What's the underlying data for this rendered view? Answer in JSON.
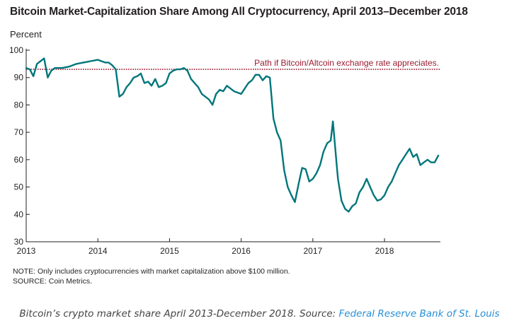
{
  "chart_data": {
    "type": "line",
    "title": "Bitcoin Market-Capitalization Share Among All Cryptocurrency, April 2013–December 2018",
    "ylabel": "Percent",
    "xlabel": "",
    "ylim": [
      30,
      100
    ],
    "yticks": [
      30,
      40,
      50,
      60,
      70,
      80,
      90,
      100
    ],
    "xlim": [
      2013.0,
      2018.78
    ],
    "xticks": [
      {
        "value": 2013,
        "label": "2013"
      },
      {
        "value": 2014,
        "label": "2014"
      },
      {
        "value": 2015,
        "label": "2015"
      },
      {
        "value": 2016,
        "label": "2016"
      },
      {
        "value": 2017,
        "label": "2017"
      },
      {
        "value": 2018,
        "label": "2018"
      }
    ],
    "grid": false,
    "series": [
      {
        "color": "#00767a",
        "x": [
          2013.0,
          2013.05,
          2013.1,
          2013.15,
          2013.2,
          2013.25,
          2013.3,
          2013.35,
          2013.4,
          2013.5,
          2013.6,
          2013.7,
          2013.8,
          2013.9,
          2014.0,
          2014.05,
          2014.1,
          2014.15,
          2014.2,
          2014.25,
          2014.3,
          2014.35,
          2014.4,
          2014.45,
          2014.5,
          2014.55,
          2014.6,
          2014.65,
          2014.7,
          2014.75,
          2014.8,
          2014.85,
          2014.9,
          2014.95,
          2015.0,
          2015.05,
          2015.1,
          2015.15,
          2015.2,
          2015.25,
          2015.3,
          2015.35,
          2015.4,
          2015.45,
          2015.5,
          2015.55,
          2015.6,
          2015.65,
          2015.7,
          2015.75,
          2015.8,
          2015.85,
          2015.9,
          2015.95,
          2016.0,
          2016.05,
          2016.1,
          2016.15,
          2016.2,
          2016.25,
          2016.3,
          2016.35,
          2016.4,
          2016.45,
          2016.5,
          2016.55,
          2016.6,
          2016.65,
          2016.7,
          2016.75,
          2016.8,
          2016.85,
          2016.9,
          2016.95,
          2017.0,
          2017.05,
          2017.1,
          2017.15,
          2017.2,
          2017.25,
          2017.28,
          2017.32,
          2017.35,
          2017.4,
          2017.45,
          2017.5,
          2017.55,
          2017.6,
          2017.65,
          2017.7,
          2017.75,
          2017.8,
          2017.85,
          2017.9,
          2017.95,
          2018.0,
          2018.05,
          2018.1,
          2018.15,
          2018.2,
          2018.25,
          2018.3,
          2018.35,
          2018.4,
          2018.45,
          2018.5,
          2018.55,
          2018.6,
          2018.65,
          2018.7,
          2018.75
        ],
        "y": [
          93.5,
          93.0,
          90.5,
          95.0,
          96.0,
          97.0,
          90.0,
          92.5,
          93.5,
          93.5,
          94.0,
          95.0,
          95.5,
          96.0,
          96.5,
          96.0,
          95.5,
          95.5,
          94.5,
          93.0,
          83.0,
          84.0,
          86.5,
          88.0,
          90.0,
          90.5,
          91.5,
          88.0,
          88.5,
          87.0,
          89.5,
          86.5,
          87.0,
          88.0,
          91.5,
          92.5,
          93.0,
          93.0,
          93.5,
          92.5,
          89.5,
          88.0,
          86.5,
          84.0,
          83.0,
          82.0,
          80.0,
          84.0,
          85.5,
          85.0,
          87.0,
          86.0,
          85.0,
          84.5,
          84.0,
          86.0,
          88.0,
          89.0,
          91.0,
          91.0,
          89.0,
          90.5,
          90.0,
          75.0,
          70.0,
          67.0,
          56.0,
          50.0,
          47.0,
          44.5,
          51.0,
          57.0,
          56.5,
          52.0,
          53.0,
          55.0,
          58.0,
          63.0,
          66.0,
          67.0,
          74.0,
          62.0,
          53.0,
          45.0,
          42.0,
          41.0,
          43.0,
          44.0,
          48.0,
          50.0,
          53.0,
          50.0,
          47.0,
          45.0,
          45.5,
          47.0,
          50.0,
          52.0,
          55.0,
          58.0,
          60.0,
          62.0,
          64.0,
          61.0,
          62.0,
          58.0,
          59.0,
          60.0,
          59.0,
          59.0,
          61.5
        ]
      }
    ],
    "reference_line": {
      "y": 93,
      "color": "#9b1b30",
      "label": "Path if Bitcoin/Altcoin exchange rate appreciates."
    }
  },
  "notes": {
    "note": "NOTE: Only includes cryptocurrencies with market capitalization above $100 million.",
    "source": "SOURCE: Coin Metrics."
  },
  "caption": {
    "text": "Bitcoin’s crypto market share April 2013-December 2018. Source:",
    "source": "Federal Reserve Bank of St. Louis"
  }
}
